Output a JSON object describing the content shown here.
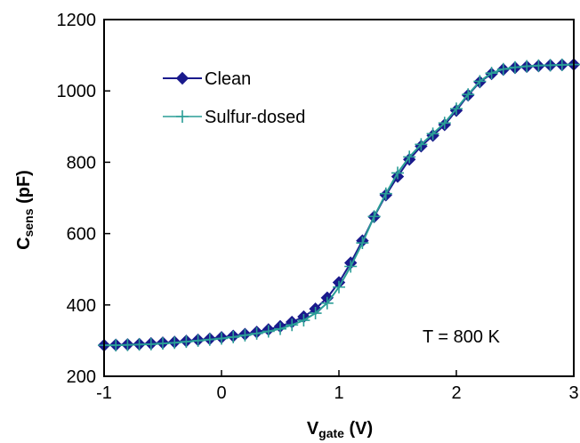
{
  "chart_data": {
    "type": "line",
    "xlabel": {
      "main": "V",
      "sub": "gate",
      "unit": " (V)"
    },
    "ylabel": {
      "main": "C",
      "sub": "sens",
      "unit": " (pF)"
    },
    "xlim": [
      -1,
      3
    ],
    "ylim": [
      200,
      1200
    ],
    "xticks": [
      -1,
      0,
      1,
      2,
      3
    ],
    "yticks": [
      200,
      400,
      600,
      800,
      1000,
      1200
    ],
    "grid": false,
    "legend_position": "top-left",
    "annotation": "T = 800 K",
    "series": [
      {
        "name": "Clean",
        "color": "#1a1a8c",
        "marker": "diamond",
        "x": [
          -1.0,
          -0.9,
          -0.8,
          -0.7,
          -0.6,
          -0.5,
          -0.4,
          -0.3,
          -0.2,
          -0.1,
          0.0,
          0.1,
          0.2,
          0.3,
          0.4,
          0.5,
          0.6,
          0.7,
          0.8,
          0.9,
          1.0,
          1.1,
          1.2,
          1.3,
          1.4,
          1.5,
          1.6,
          1.7,
          1.8,
          1.9,
          2.0,
          2.1,
          2.2,
          2.3,
          2.4,
          2.5,
          2.6,
          2.7,
          2.8,
          2.9,
          3.0
        ],
        "y": [
          287,
          288,
          289,
          290,
          292,
          294,
          296,
          299,
          302,
          305,
          309,
          313,
          318,
          324,
          331,
          340,
          352,
          367,
          389,
          420,
          463,
          518,
          580,
          647,
          708,
          760,
          808,
          845,
          875,
          905,
          945,
          988,
          1025,
          1048,
          1060,
          1065,
          1068,
          1070,
          1072,
          1073,
          1074
        ]
      },
      {
        "name": "Sulfur-dosed",
        "color": "#2a9d96",
        "marker": "plus",
        "x": [
          -1.0,
          -0.9,
          -0.8,
          -0.7,
          -0.6,
          -0.5,
          -0.4,
          -0.3,
          -0.2,
          -0.1,
          0.0,
          0.1,
          0.2,
          0.3,
          0.4,
          0.5,
          0.6,
          0.7,
          0.8,
          0.9,
          1.0,
          1.1,
          1.2,
          1.3,
          1.4,
          1.5,
          1.6,
          1.7,
          1.8,
          1.9,
          2.0,
          2.1,
          2.2,
          2.3,
          2.4,
          2.5,
          2.6,
          2.7,
          2.8,
          2.9,
          3.0
        ],
        "y": [
          287,
          287,
          288,
          289,
          290,
          292,
          294,
          297,
          300,
          303,
          306,
          310,
          315,
          320,
          326,
          333,
          344,
          357,
          377,
          405,
          450,
          508,
          574,
          648,
          712,
          770,
          815,
          850,
          880,
          910,
          950,
          990,
          1027,
          1050,
          1061,
          1066,
          1069,
          1071,
          1072,
          1073,
          1074
        ]
      }
    ]
  }
}
